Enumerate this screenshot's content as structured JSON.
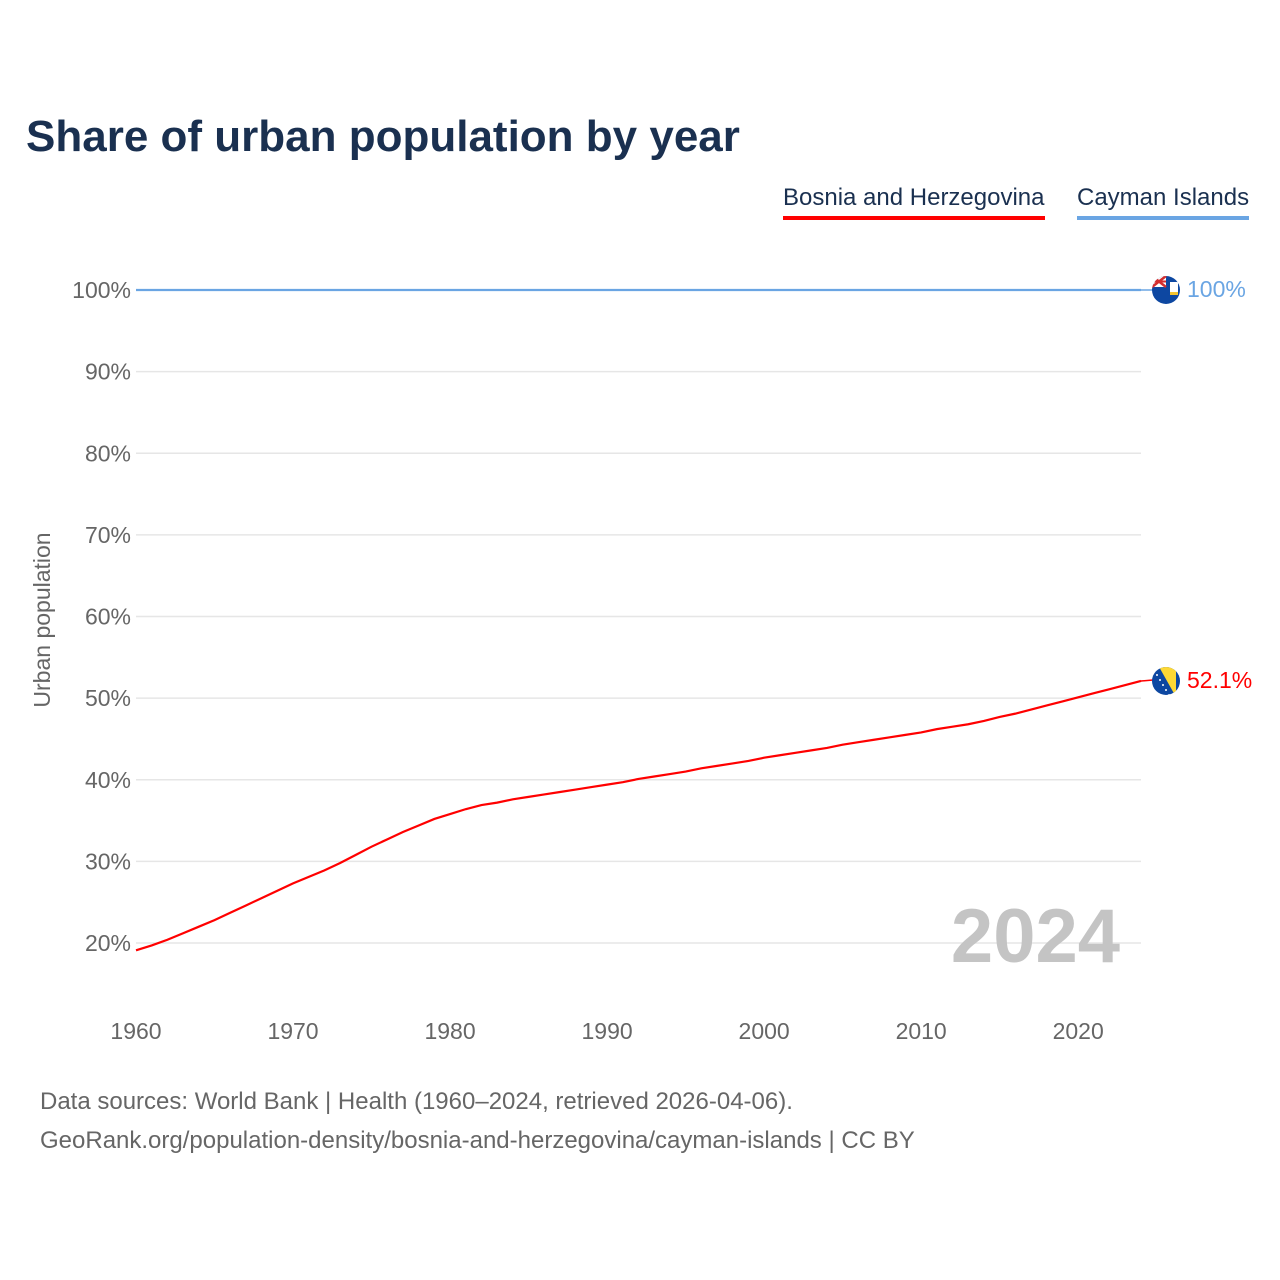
{
  "chart_data": {
    "type": "line",
    "title": "Share of urban population by year",
    "xlabel": "",
    "ylabel": "Urban population",
    "xlim": [
      1960,
      2024
    ],
    "ylim": [
      20,
      100
    ],
    "grid": true,
    "legend_placement": "top-right",
    "x_ticks": [
      "1960",
      "1970",
      "1980",
      "1990",
      "2000",
      "2010",
      "2020"
    ],
    "y_ticks": [
      "20%",
      "30%",
      "40%",
      "50%",
      "60%",
      "70%",
      "80%",
      "90%",
      "100%"
    ],
    "year_watermark": "2024",
    "series": [
      {
        "name": "Bosnia and Herzegovina",
        "color": "#ff0000",
        "flag": "bosnia-flag",
        "end_label": "52.1%",
        "x": [
          1960,
          1961,
          1962,
          1963,
          1964,
          1965,
          1966,
          1967,
          1968,
          1969,
          1970,
          1971,
          1972,
          1973,
          1974,
          1975,
          1976,
          1977,
          1978,
          1979,
          1980,
          1981,
          1982,
          1983,
          1984,
          1985,
          1986,
          1987,
          1988,
          1989,
          1990,
          1991,
          1992,
          1993,
          1994,
          1995,
          1996,
          1997,
          1998,
          1999,
          2000,
          2001,
          2002,
          2003,
          2004,
          2005,
          2006,
          2007,
          2008,
          2009,
          2010,
          2011,
          2012,
          2013,
          2014,
          2015,
          2016,
          2017,
          2018,
          2019,
          2020,
          2021,
          2022,
          2023,
          2024
        ],
        "values": [
          19.1,
          19.7,
          20.4,
          21.2,
          22.0,
          22.8,
          23.7,
          24.6,
          25.5,
          26.4,
          27.3,
          28.1,
          28.9,
          29.8,
          30.8,
          31.8,
          32.7,
          33.6,
          34.4,
          35.2,
          35.8,
          36.4,
          36.9,
          37.2,
          37.6,
          37.9,
          38.2,
          38.5,
          38.8,
          39.1,
          39.4,
          39.7,
          40.1,
          40.4,
          40.7,
          41.0,
          41.4,
          41.7,
          42.0,
          42.3,
          42.7,
          43.0,
          43.3,
          43.6,
          43.9,
          44.3,
          44.6,
          44.9,
          45.2,
          45.5,
          45.8,
          46.2,
          46.5,
          46.8,
          47.2,
          47.7,
          48.1,
          48.6,
          49.1,
          49.6,
          50.1,
          50.6,
          51.1,
          51.6,
          52.1
        ]
      },
      {
        "name": "Cayman Islands",
        "color": "#6aa5e3",
        "flag": "cayman-islands-flag",
        "end_label": "100%",
        "x": [
          1960,
          2024
        ],
        "values": [
          100,
          100
        ]
      }
    ]
  },
  "footer": {
    "line1": "Data sources: World Bank | Health (1960–2024, retrieved 2026-04-06).",
    "line2": "GeoRank.org/population-density/bosnia-and-herzegovina/cayman-islands | CC BY"
  }
}
